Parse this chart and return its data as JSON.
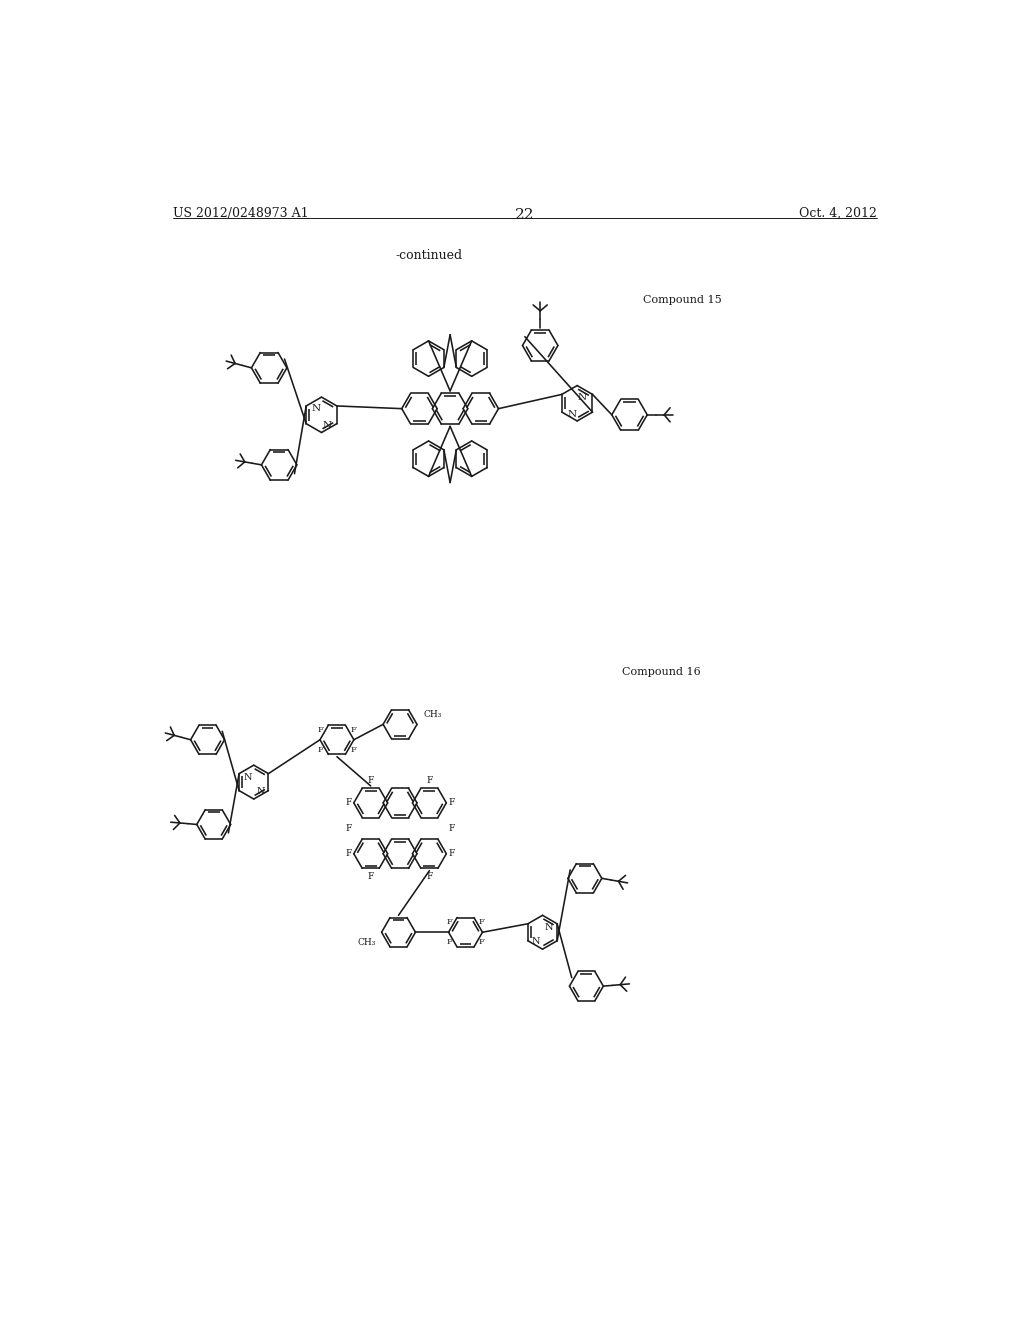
{
  "bg": "#ffffff",
  "lc": "#1a1a1a",
  "lw": 1.15,
  "header_left": "US 2012/0248973 A1",
  "header_right": "Oct. 4, 2012",
  "page_num": "22",
  "continued": "-continued",
  "cmp15": "Compound 15",
  "cmp16": "Compound 16"
}
